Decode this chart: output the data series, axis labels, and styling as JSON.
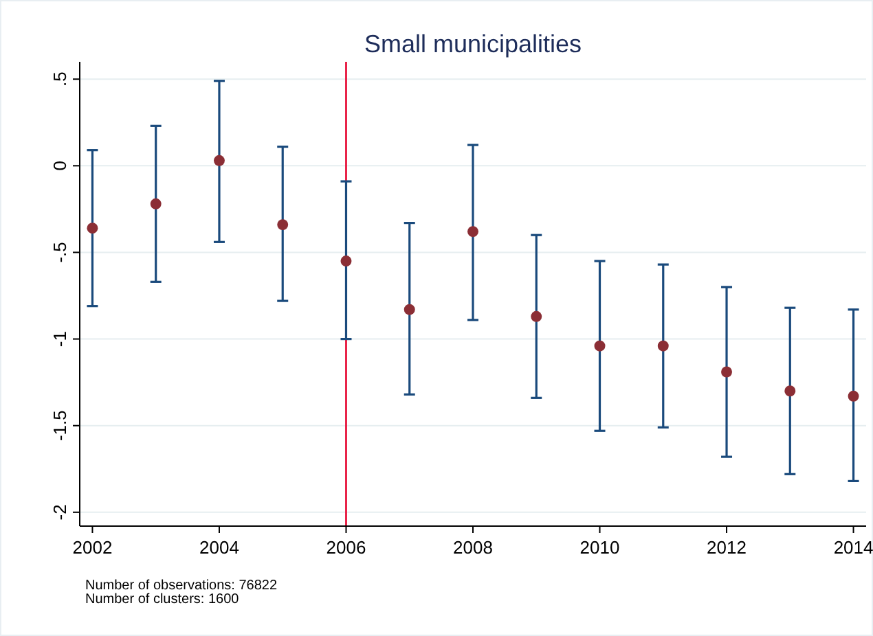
{
  "chart_data": {
    "type": "scatter",
    "title": "Small municipalities",
    "x": [
      2002,
      2003,
      2004,
      2005,
      2006,
      2007,
      2008,
      2009,
      2010,
      2011,
      2012,
      2013,
      2014
    ],
    "series": [
      {
        "color": "#8b2e35",
        "values": [
          -0.36,
          -0.22,
          0.03,
          -0.34,
          -0.55,
          -0.83,
          -0.38,
          -0.87,
          -1.04,
          -1.04,
          -1.19,
          -1.3,
          -1.33
        ],
        "errors": [
          [
            -0.81,
            0.09
          ],
          [
            -0.67,
            0.23
          ],
          [
            -0.44,
            0.49
          ],
          [
            -0.78,
            0.11
          ],
          [
            -1.0,
            -0.09
          ],
          [
            -1.32,
            -0.33
          ],
          [
            -0.89,
            0.12
          ],
          [
            -1.34,
            -0.4
          ],
          [
            -1.53,
            -0.55
          ],
          [
            -1.51,
            -0.57
          ],
          [
            -1.68,
            -0.7
          ],
          [
            -1.78,
            -0.82
          ],
          [
            -1.82,
            -0.83
          ]
        ]
      }
    ],
    "xlim": [
      2001.8,
      2014.2
    ],
    "xticks": [
      2002,
      2004,
      2006,
      2008,
      2010,
      2012,
      2014
    ],
    "ylim": [
      -2.08,
      0.6
    ],
    "yticks": [
      {
        "value": 0.5,
        "label": ".5"
      },
      0,
      {
        "value": -0.5,
        "label": "-.5"
      },
      -1,
      {
        "value": -1.5,
        "label": "-1.5"
      },
      -2
    ],
    "grid": "y",
    "marker": "circle",
    "ref_lines": [
      {
        "axis": "x",
        "value": 2006,
        "color": "#e8143c"
      }
    ],
    "annotations": [
      "Number of observations: 76822",
      "Number of clusters: 1600"
    ]
  }
}
